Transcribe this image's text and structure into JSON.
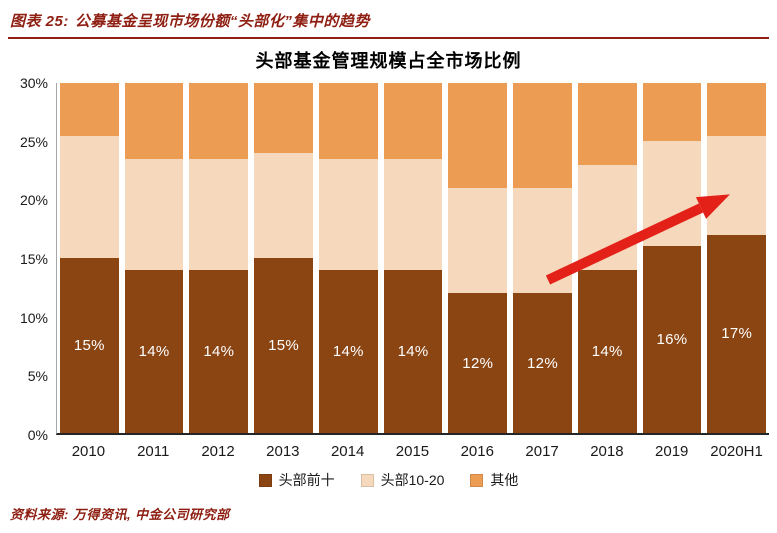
{
  "header": {
    "label": "图表 25:",
    "title": "公募基金呈现市场份额“头部化”集中的趋势"
  },
  "chart": {
    "title": "头部基金管理规模占全市场比例",
    "y_ticks": [
      "30%",
      "25%",
      "20%",
      "15%",
      "10%",
      "5%",
      "0%"
    ]
  },
  "chart_data": {
    "type": "bar",
    "stacked": true,
    "title": "头部基金管理规模占全市场比例",
    "categories": [
      "2010",
      "2011",
      "2012",
      "2013",
      "2014",
      "2015",
      "2016",
      "2017",
      "2018",
      "2019",
      "2020H1"
    ],
    "series": [
      {
        "name": "头部前十",
        "color": "#8B4513",
        "values": [
          15,
          14,
          14,
          15,
          14,
          14,
          12,
          12,
          14,
          16,
          17
        ],
        "labels": [
          "15%",
          "14%",
          "14%",
          "15%",
          "14%",
          "14%",
          "12%",
          "12%",
          "14%",
          "16%",
          "17%"
        ]
      },
      {
        "name": "头部10-20",
        "color": "#F6D9BC",
        "values": [
          10.5,
          9.5,
          9.5,
          9,
          9.5,
          9.5,
          9,
          9,
          9,
          9,
          8.5
        ]
      },
      {
        "name": "其他",
        "color": "#ED9D53",
        "values": [
          4.5,
          6.5,
          6.5,
          6,
          6.5,
          6.5,
          9,
          9,
          7,
          5,
          4.5
        ]
      }
    ],
    "ylim": [
      0,
      30
    ],
    "ylabel": "",
    "grid": false,
    "legend_position": "bottom",
    "annotation": "upward red trend arrow over 2017-2020H1"
  },
  "legend": [
    {
      "label": "头部前十",
      "color": "#8B4513"
    },
    {
      "label": "头部10-20",
      "color": "#F6D9BC"
    },
    {
      "label": "其他",
      "color": "#ED9D53"
    }
  ],
  "footer": {
    "source": "资料来源: 万得资讯, 中金公司研究部"
  },
  "colors": {
    "accent_red": "#8E1F12",
    "arrow_red": "#E32119",
    "bar_brown": "#8B4513",
    "bar_peach": "#F6D9BC",
    "bar_orange": "#ED9D53"
  }
}
